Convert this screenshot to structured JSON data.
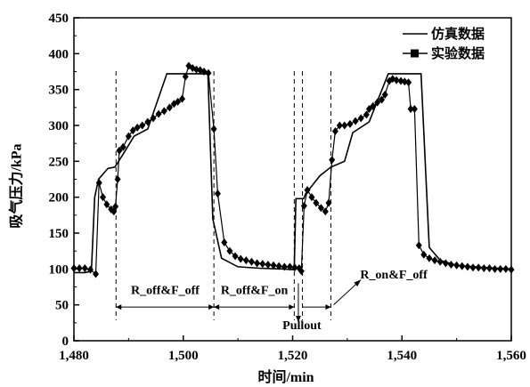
{
  "chart_data": {
    "type": "line",
    "xlabel": "时间/min",
    "ylabel": "吸气压力/kPa",
    "xlim": [
      1480,
      1560
    ],
    "ylim": [
      0,
      450
    ],
    "x_ticks": [
      1480,
      1500,
      1520,
      1540,
      1560
    ],
    "x_tick_labels": [
      "1,480",
      "1,500",
      "1,520",
      "1,540",
      "1,560"
    ],
    "y_ticks": [
      0,
      50,
      100,
      150,
      200,
      250,
      300,
      350,
      400,
      450
    ],
    "y_tick_labels": [
      "0",
      "50",
      "100",
      "150",
      "200",
      "250",
      "300",
      "350",
      "400",
      "450"
    ],
    "grid": false,
    "legend_position": "top-right",
    "series": [
      {
        "name": "仿真数据",
        "marker": "none",
        "points": [
          [
            1480,
            95
          ],
          [
            1482,
            95
          ],
          [
            1483.2,
            97
          ],
          [
            1483.8,
            200
          ],
          [
            1484.5,
            225
          ],
          [
            1486.2,
            240
          ],
          [
            1487.5,
            242
          ],
          [
            1489,
            260
          ],
          [
            1491,
            285
          ],
          [
            1493.5,
            295
          ],
          [
            1497,
            372
          ],
          [
            1504.5,
            372
          ],
          [
            1505.4,
            170
          ],
          [
            1507,
            115
          ],
          [
            1510,
            103
          ],
          [
            1514,
            101
          ],
          [
            1518,
            100
          ],
          [
            1520.3,
            99
          ],
          [
            1520.6,
            198
          ],
          [
            1522,
            198
          ],
          [
            1522.4,
            205
          ],
          [
            1525,
            230
          ],
          [
            1527,
            242
          ],
          [
            1529.5,
            250
          ],
          [
            1531,
            290
          ],
          [
            1534,
            305
          ],
          [
            1537.5,
            372
          ],
          [
            1543.5,
            372
          ],
          [
            1545,
            130
          ],
          [
            1547,
            112
          ],
          [
            1550,
            105
          ],
          [
            1555,
            102
          ],
          [
            1560,
            100
          ]
        ]
      },
      {
        "name": "实验数据",
        "marker": "diamond",
        "points": [
          [
            1480,
            101
          ],
          [
            1481,
            101
          ],
          [
            1482,
            101
          ],
          [
            1483,
            99
          ],
          [
            1484,
            93
          ],
          [
            1484.6,
            220
          ],
          [
            1485.3,
            200
          ],
          [
            1486,
            190
          ],
          [
            1486.8,
            183
          ],
          [
            1487.3,
            180
          ],
          [
            1487.6,
            187
          ],
          [
            1488,
            225
          ],
          [
            1488.3,
            265
          ],
          [
            1489,
            270
          ],
          [
            1490,
            285
          ],
          [
            1490.8,
            293
          ],
          [
            1491.6,
            297
          ],
          [
            1492.5,
            300
          ],
          [
            1493.5,
            305
          ],
          [
            1494.5,
            310
          ],
          [
            1495.5,
            316
          ],
          [
            1496.5,
            320
          ],
          [
            1497.5,
            325
          ],
          [
            1498.3,
            330
          ],
          [
            1499,
            333
          ],
          [
            1499.8,
            337
          ],
          [
            1500.4,
            368
          ],
          [
            1501,
            383
          ],
          [
            1501.7,
            380
          ],
          [
            1502.4,
            378
          ],
          [
            1503.1,
            377
          ],
          [
            1503.8,
            375
          ],
          [
            1504.6,
            373
          ],
          [
            1505.6,
            295
          ],
          [
            1506.3,
            205
          ],
          [
            1507.5,
            137
          ],
          [
            1508.5,
            125
          ],
          [
            1509.5,
            118
          ],
          [
            1510.5,
            114
          ],
          [
            1511.5,
            112
          ],
          [
            1512.5,
            110
          ],
          [
            1513.5,
            108
          ],
          [
            1514.5,
            107
          ],
          [
            1515.5,
            106
          ],
          [
            1516.5,
            105
          ],
          [
            1517.5,
            104
          ],
          [
            1518.5,
            103
          ],
          [
            1519.5,
            103
          ],
          [
            1520.4,
            102
          ],
          [
            1521.2,
            101
          ],
          [
            1521.6,
            97
          ],
          [
            1522.1,
            188
          ],
          [
            1522.7,
            210
          ],
          [
            1523.5,
            200
          ],
          [
            1524.3,
            192
          ],
          [
            1525.2,
            185
          ],
          [
            1526,
            180
          ],
          [
            1526.6,
            192
          ],
          [
            1527.2,
            252
          ],
          [
            1527.8,
            292
          ],
          [
            1528.6,
            300
          ],
          [
            1529.5,
            300
          ],
          [
            1530.5,
            302
          ],
          [
            1531.5,
            306
          ],
          [
            1532.5,
            310
          ],
          [
            1533.5,
            315
          ],
          [
            1534,
            323
          ],
          [
            1534.7,
            327
          ],
          [
            1535.5,
            332
          ],
          [
            1536.3,
            336
          ],
          [
            1536.9,
            343
          ],
          [
            1537.7,
            362
          ],
          [
            1538.3,
            365
          ],
          [
            1539,
            363
          ],
          [
            1539.8,
            362
          ],
          [
            1540.5,
            361
          ],
          [
            1541.2,
            360
          ],
          [
            1541.6,
            323
          ],
          [
            1542.3,
            323
          ],
          [
            1543.1,
            133
          ],
          [
            1544,
            120
          ],
          [
            1545,
            115
          ],
          [
            1546,
            112
          ],
          [
            1547,
            110
          ],
          [
            1548,
            108
          ],
          [
            1549,
            106
          ],
          [
            1550,
            105
          ],
          [
            1551,
            104
          ],
          [
            1552,
            103
          ],
          [
            1553,
            102
          ],
          [
            1554,
            102
          ],
          [
            1555,
            101
          ],
          [
            1556,
            101
          ],
          [
            1557,
            100
          ],
          [
            1558,
            100
          ],
          [
            1559,
            100
          ],
          [
            1560,
            99
          ]
        ]
      }
    ],
    "vertical_dashed_lines_x": [
      1487.7,
      1505.6,
      1520.3,
      1521.8,
      1527
    ],
    "annotations": [
      {
        "text": "R_off&F_off",
        "x": 1496.7,
        "y": 65
      },
      {
        "text": "R_off&F_on",
        "x": 1513,
        "y": 65
      },
      {
        "text": "Pullout",
        "x": 1521.7,
        "y": 16
      },
      {
        "text": "R_on&F_off",
        "x": 1538.5,
        "y": 87
      }
    ]
  }
}
